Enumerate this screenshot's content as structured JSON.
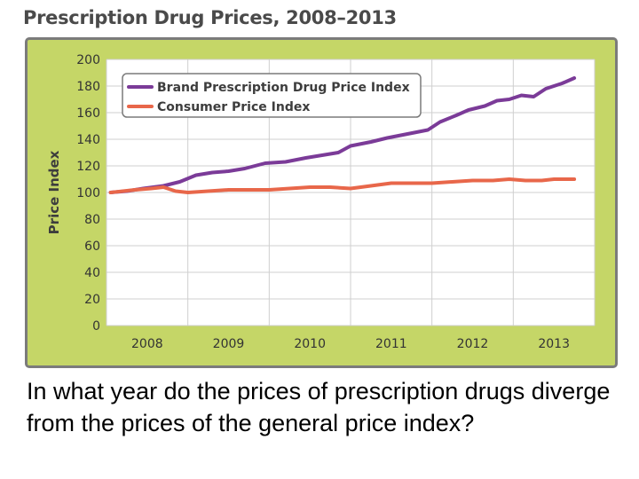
{
  "chart_data": {
    "type": "line",
    "title": "Prescription Drug Prices, 2008–2013",
    "ylabel": "Price Index",
    "xlabel": "",
    "x_ticks": [
      "2008",
      "2009",
      "2010",
      "2011",
      "2012",
      "2013"
    ],
    "y_ticks": [
      "0",
      "20",
      "40",
      "60",
      "80",
      "100",
      "120",
      "140",
      "160",
      "180",
      "200"
    ],
    "xlim": [
      2007.5,
      2013.5
    ],
    "ylim": [
      0,
      200
    ],
    "grid": true,
    "legend": "top-left",
    "series": [
      {
        "name": "Brand Prescription Drug Price Index",
        "color": "#7b3b98",
        "points": [
          [
            2007.55,
            100
          ],
          [
            2007.75,
            101
          ],
          [
            2007.95,
            103
          ],
          [
            2008.2,
            105
          ],
          [
            2008.4,
            108
          ],
          [
            2008.6,
            113
          ],
          [
            2008.8,
            115
          ],
          [
            2009.0,
            116
          ],
          [
            2009.2,
            118
          ],
          [
            2009.45,
            122
          ],
          [
            2009.7,
            123
          ],
          [
            2009.95,
            126
          ],
          [
            2010.15,
            128
          ],
          [
            2010.35,
            130
          ],
          [
            2010.5,
            135
          ],
          [
            2010.75,
            138
          ],
          [
            2010.95,
            141
          ],
          [
            2011.2,
            144
          ],
          [
            2011.45,
            147
          ],
          [
            2011.6,
            153
          ],
          [
            2011.8,
            158
          ],
          [
            2011.95,
            162
          ],
          [
            2012.15,
            165
          ],
          [
            2012.3,
            169
          ],
          [
            2012.45,
            170
          ],
          [
            2012.6,
            173
          ],
          [
            2012.75,
            172
          ],
          [
            2012.9,
            178
          ],
          [
            2013.1,
            182
          ],
          [
            2013.25,
            186
          ]
        ]
      },
      {
        "name": "Consumer Price Index",
        "color": "#e8674a",
        "points": [
          [
            2007.55,
            100
          ],
          [
            2007.85,
            102
          ],
          [
            2008.05,
            103
          ],
          [
            2008.2,
            104
          ],
          [
            2008.35,
            101
          ],
          [
            2008.5,
            100
          ],
          [
            2008.75,
            101
          ],
          [
            2009.0,
            102
          ],
          [
            2009.25,
            102
          ],
          [
            2009.5,
            102
          ],
          [
            2009.75,
            103
          ],
          [
            2010.0,
            104
          ],
          [
            2010.25,
            104
          ],
          [
            2010.5,
            103
          ],
          [
            2010.75,
            105
          ],
          [
            2011.0,
            107
          ],
          [
            2011.25,
            107
          ],
          [
            2011.5,
            107
          ],
          [
            2011.75,
            108
          ],
          [
            2012.0,
            109
          ],
          [
            2012.25,
            109
          ],
          [
            2012.45,
            110
          ],
          [
            2012.65,
            109
          ],
          [
            2012.85,
            109
          ],
          [
            2013.0,
            110
          ],
          [
            2013.25,
            110
          ]
        ]
      }
    ]
  },
  "question": "In what year do the prices of prescription drugs diverge from the prices of the general price index?"
}
